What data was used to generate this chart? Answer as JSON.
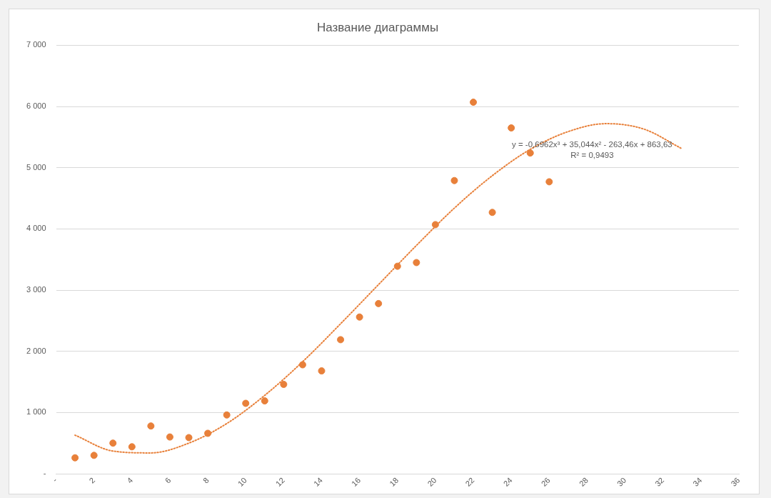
{
  "chart_data": {
    "type": "scatter",
    "title": "Название диаграммы",
    "x": [
      1,
      2,
      3,
      4,
      5,
      6,
      7,
      8,
      9,
      10,
      11,
      12,
      13,
      14,
      15,
      16,
      17,
      18,
      19,
      20,
      21,
      22,
      23,
      24,
      25,
      26
    ],
    "series": [
      {
        "color": "#e8803a",
        "values": [
          260,
          300,
          500,
          440,
          780,
          600,
          590,
          660,
          960,
          1150,
          1190,
          1460,
          1780,
          1680,
          2190,
          2560,
          2780,
          3390,
          3450,
          4070,
          4790,
          6070,
          4270,
          5650,
          5240,
          4770
        ]
      },
      {
        "type": "line",
        "color": "#e8803a",
        "line_style": "dotted",
        "marker": "none",
        "x": [
          1,
          3,
          5,
          7,
          9,
          11,
          13,
          15,
          17,
          19,
          21,
          23,
          25,
          27,
          29,
          31,
          33
        ],
        "values": [
          630,
          370,
          340,
          500,
          820,
          1280,
          1830,
          2450,
          3090,
          3730,
          4340,
          4870,
          5300,
          5590,
          5720,
          5630,
          5310
        ]
      }
    ],
    "marker": "circle",
    "xlim": [
      0,
      36
    ],
    "xticks": [
      {
        "value": 0,
        "label": "-"
      },
      2,
      4,
      6,
      8,
      10,
      12,
      14,
      16,
      18,
      20,
      22,
      24,
      26,
      28,
      30,
      32,
      34,
      36
    ],
    "ylim": [
      0,
      7000
    ],
    "yticks": [
      {
        "value": 0,
        "label": "-"
      },
      {
        "value": 1000,
        "label": "1 000"
      },
      {
        "value": 2000,
        "label": "2 000"
      },
      {
        "value": 3000,
        "label": "3 000"
      },
      {
        "value": 4000,
        "label": "4 000"
      },
      {
        "value": 5000,
        "label": "5 000"
      },
      {
        "value": 6000,
        "label": "6 000"
      },
      {
        "value": 7000,
        "label": "7 000"
      }
    ],
    "grid": "y",
    "legend": false,
    "annotations": [
      "y = -0,6962x³ + 35,044x² - 263,46x + 863,63",
      "R² = 0,9493"
    ]
  }
}
